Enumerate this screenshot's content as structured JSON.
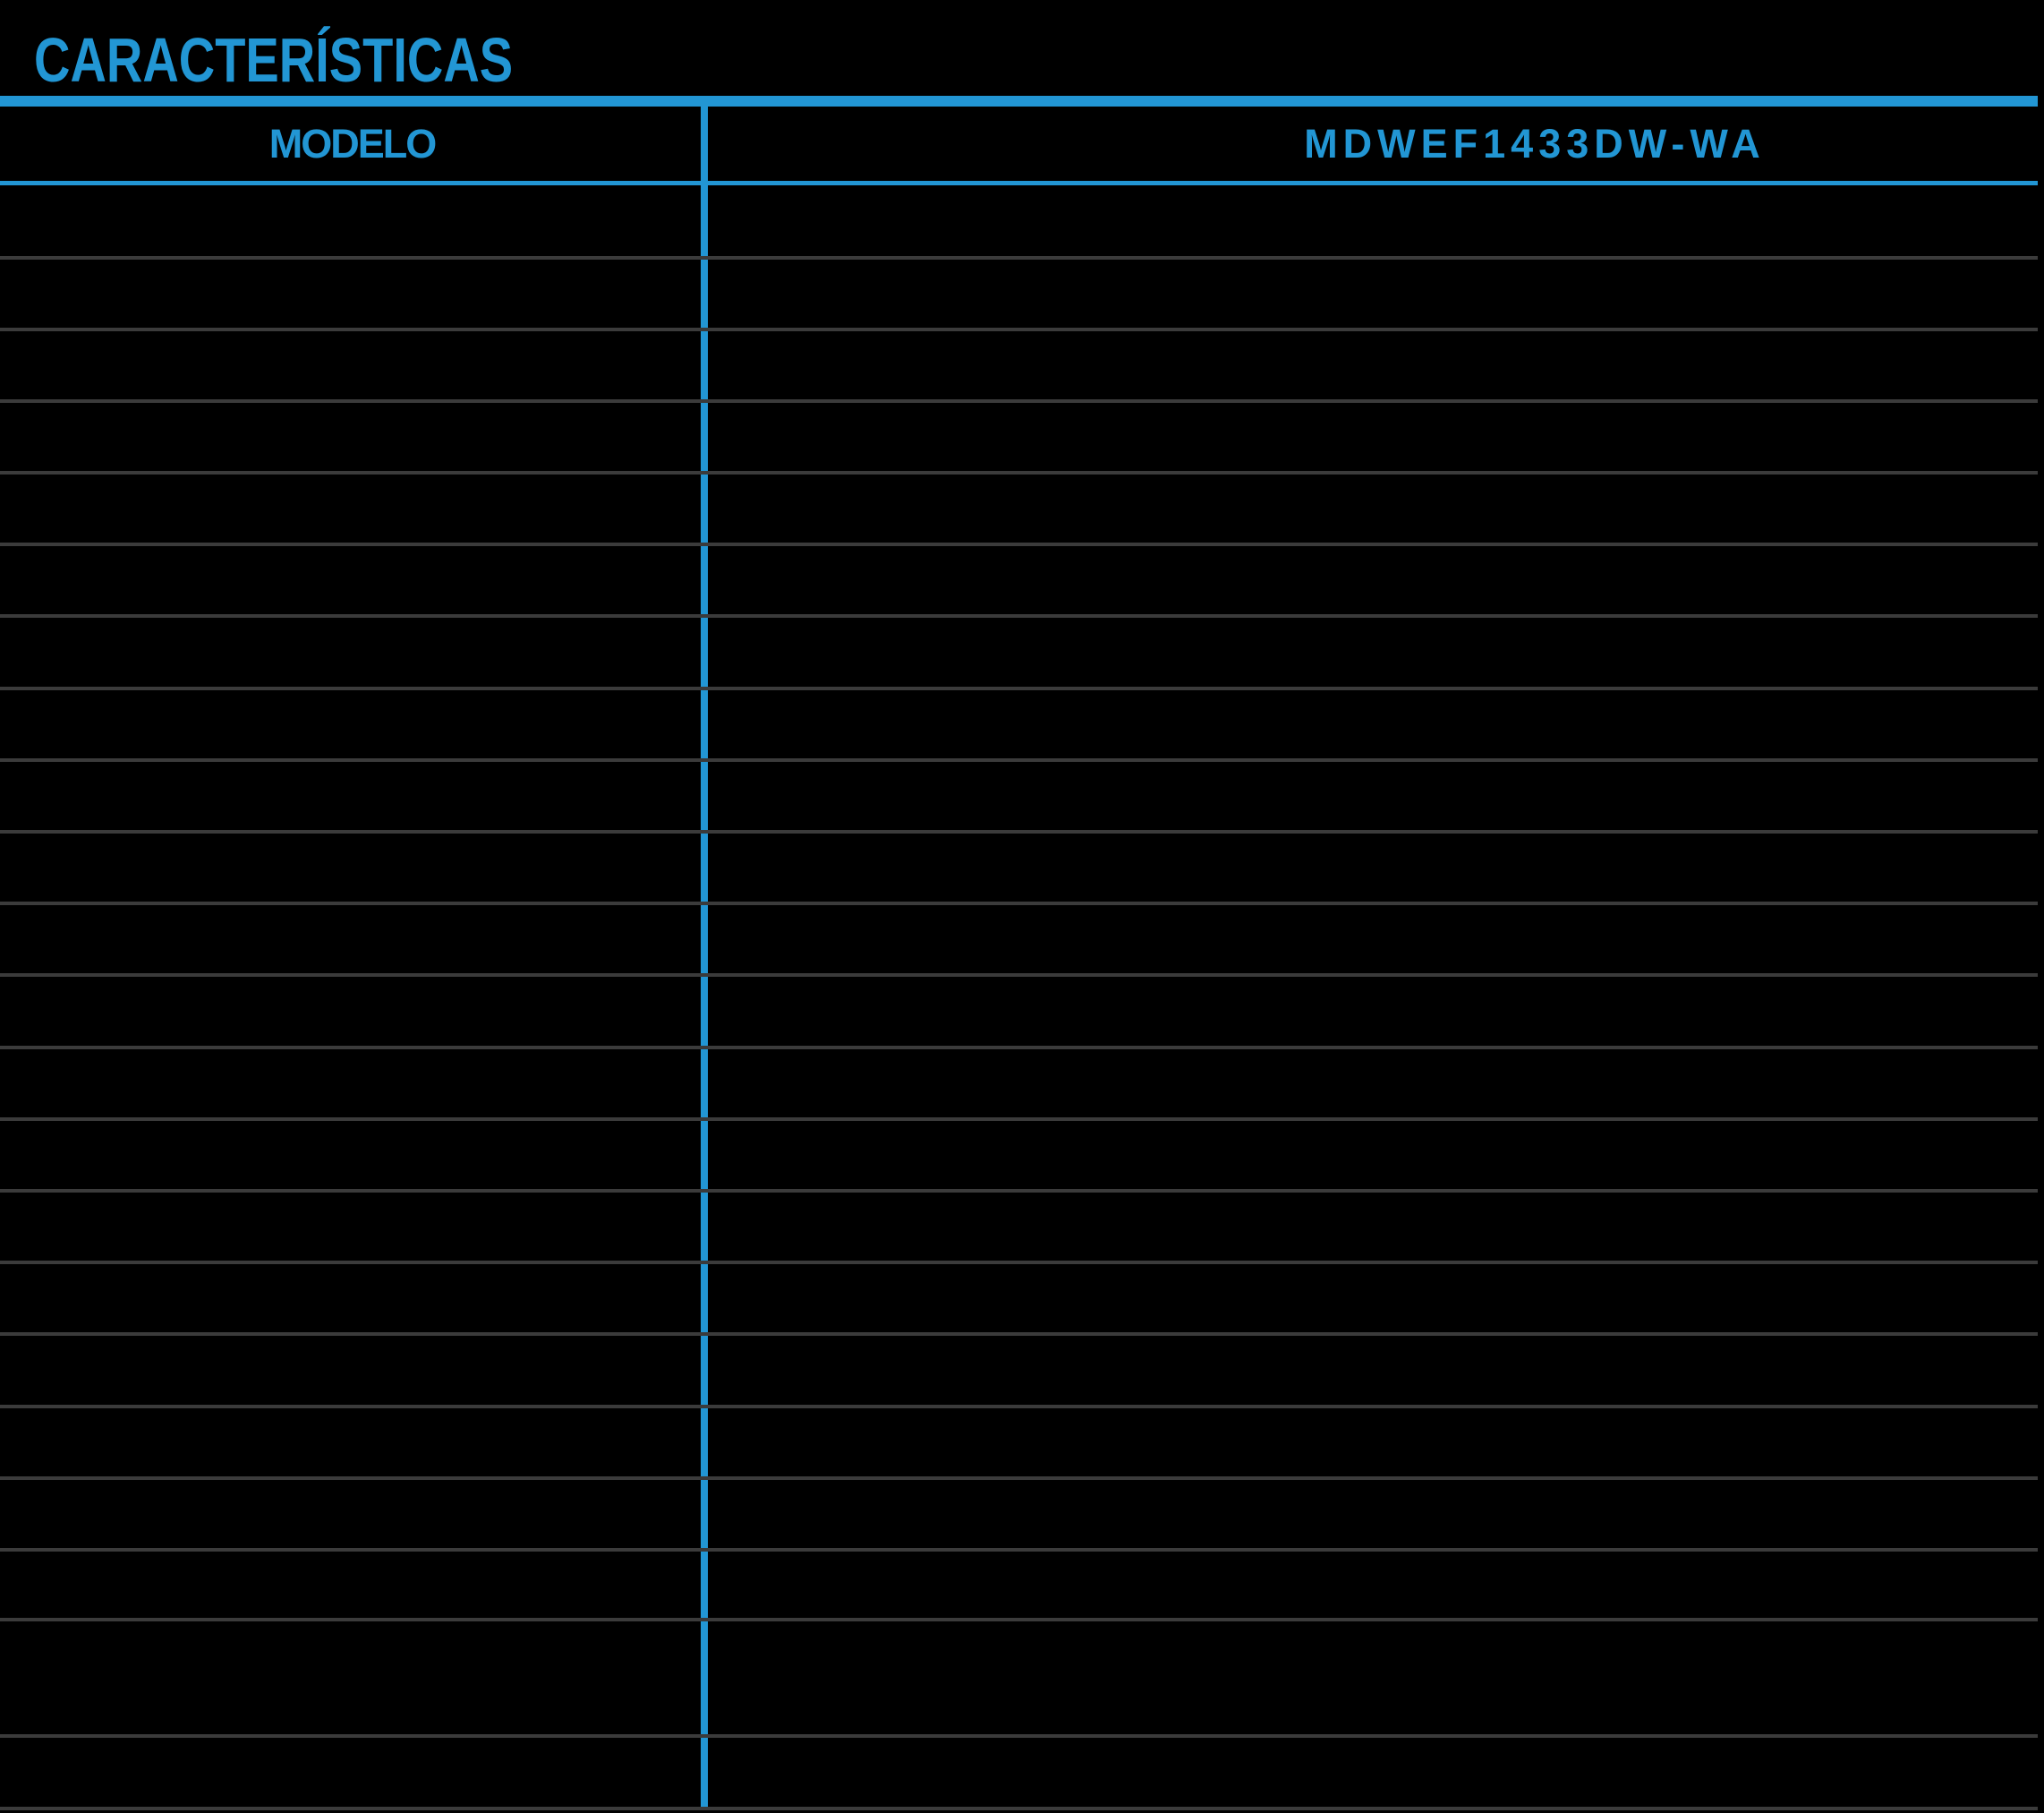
{
  "page": {
    "title": "CARACTERÍSTICAS",
    "background": "#000000"
  },
  "colors": {
    "accent_blue": "#2296D4",
    "divider_gray": "#3B3B3B"
  },
  "table": {
    "header": {
      "model_column_label": "MODELO",
      "model_number": "MDWEF1433DW-WA"
    },
    "rows": [
      {
        "feature": "",
        "value": ""
      },
      {
        "feature": "",
        "value": ""
      },
      {
        "feature": "",
        "value": ""
      },
      {
        "feature": "",
        "value": ""
      },
      {
        "feature": "",
        "value": ""
      },
      {
        "feature": "",
        "value": ""
      },
      {
        "feature": "",
        "value": ""
      },
      {
        "feature": "",
        "value": ""
      },
      {
        "feature": "",
        "value": ""
      },
      {
        "feature": "",
        "value": ""
      },
      {
        "feature": "",
        "value": ""
      },
      {
        "feature": "",
        "value": ""
      },
      {
        "feature": "",
        "value": ""
      },
      {
        "feature": "",
        "value": ""
      },
      {
        "feature": "",
        "value": ""
      },
      {
        "feature": "",
        "value": ""
      },
      {
        "feature": "",
        "value": ""
      },
      {
        "feature": "",
        "value": ""
      },
      {
        "feature": "",
        "value": ""
      },
      {
        "feature": "",
        "value": ""
      },
      {
        "feature": "",
        "value": ""
      },
      {
        "feature": "",
        "value": ""
      }
    ]
  }
}
